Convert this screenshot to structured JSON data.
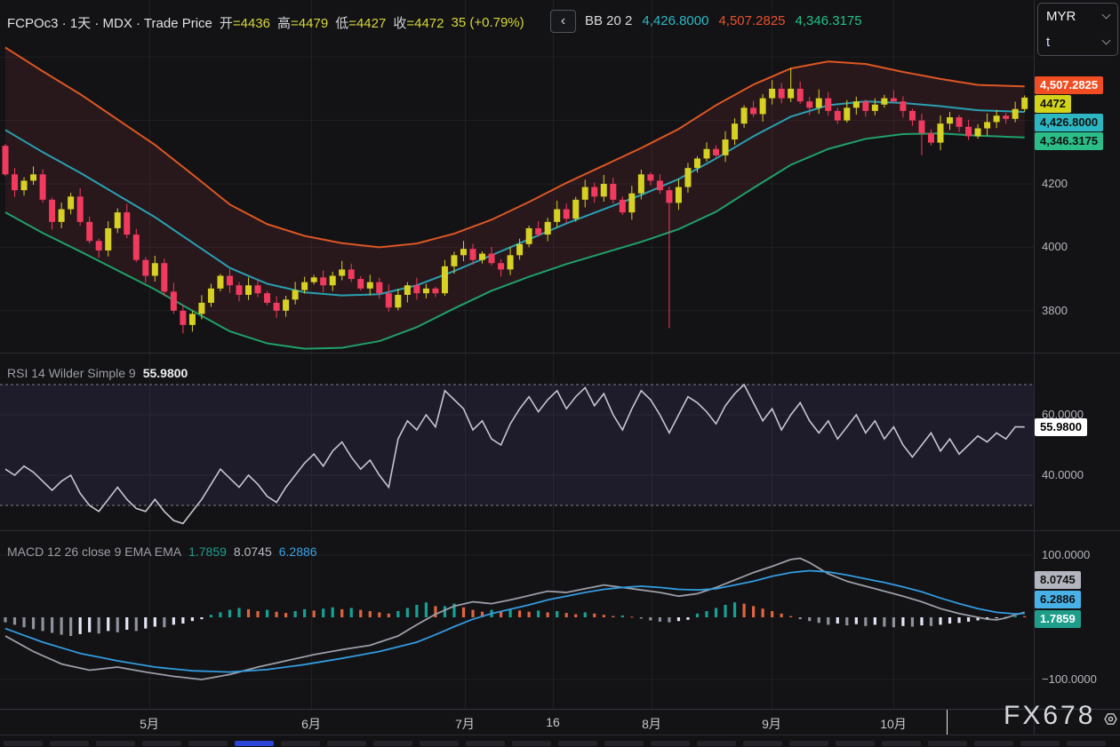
{
  "header": {
    "title": "FCPOc3 · 1天 · MDX · Trade Price",
    "ohlc": {
      "open_label": "开",
      "open": "=4436",
      "high_label": "高",
      "high": "=4479",
      "low_label": "低",
      "low": "=4427",
      "close_label": "收",
      "close": "=4472",
      "change": "35 (+0.79%)"
    },
    "back_button": "‹",
    "bb_legend": {
      "title": "BB 20 2",
      "basis": "4,426.8000",
      "upper": "4,507.2825",
      "lower": "4,346.3175"
    }
  },
  "top_right": {
    "currency": "MYR",
    "unit": "t"
  },
  "price_axis": {
    "ticks": [
      "4200",
      "4000",
      "3800"
    ],
    "chips": {
      "upper": {
        "text": "4,507.2825",
        "bg": "#f04e22",
        "fg": "#ffffff"
      },
      "last": {
        "text": "4472",
        "bg": "#d3d419",
        "fg": "#111111"
      },
      "basis": {
        "text": "4,426.8000",
        "bg": "#2cb6c2",
        "fg": "#111111"
      },
      "lower": {
        "text": "4,346.3175",
        "bg": "#2abd87",
        "fg": "#111111"
      }
    }
  },
  "rsi_pane": {
    "title": "RSI 14 Wilder Simple 9",
    "value": "55.9800",
    "ticks": [
      "60.0000",
      "40.0000"
    ],
    "chip": {
      "text": "55.9800",
      "bg": "#ffffff",
      "fg": "#000000"
    }
  },
  "macd_pane": {
    "title": "MACD 12 26 close 9 EMA EMA",
    "hist_value": "1.7859",
    "macd_value": "8.0745",
    "signal_value": "6.2886",
    "ticks": [
      "100.0000",
      "−100.0000"
    ],
    "chips": {
      "macd": {
        "text": "8.0745",
        "bg": "#b2b5be",
        "fg": "#111111"
      },
      "signal": {
        "text": "6.2886",
        "bg": "#47b1e8",
        "fg": "#111111"
      },
      "hist": {
        "text": "1.7859",
        "bg": "#1e9d8b",
        "fg": "#ffffff"
      }
    }
  },
  "watermark": {
    "text": "FX678"
  },
  "minimap": {
    "segments": 24,
    "active_index": 5
  },
  "colors": {
    "candle_up": "#d6d122",
    "candle_down": "#f23a5f",
    "bb_upper": "#dd5623",
    "bb_basis": "#29a0b2",
    "bb_lower": "#1fa06a",
    "bb_fill": "rgba(230,70,96,0.10)",
    "rsi_line": "#c5c6d0",
    "rsi_band_fill": "rgba(140,112,250,0.09)",
    "macd_line": "#9b9ea8",
    "signal_line": "#339be0",
    "hist_pos_rise": "#16a195",
    "hist_pos_fall": "#e0643f",
    "hist_neg_fall": "#8d919b",
    "hist_neg_rise": "#e3e4f5",
    "grid": "rgba(255,255,255,0.055)",
    "dashed_level": "#8f929c"
  },
  "chart_data": {
    "type": "candlestick",
    "symbol": "FCPOc3",
    "interval": "1天",
    "exchange": "MDX",
    "series": "Trade Price",
    "currency": "MYR",
    "unit": "t",
    "last_ohlc": {
      "open": 4436,
      "high": 4479,
      "low": 4427,
      "close": 4472,
      "change": 35,
      "change_pct": 0.79
    },
    "price_ticks": [
      4200,
      4000,
      3800
    ],
    "price_gridlines": [
      4600,
      4400,
      4200,
      4000,
      3800
    ],
    "x_labels": [
      [
        "5月",
        168
      ],
      [
        "6月",
        350
      ],
      [
        "7月",
        523
      ],
      [
        "16",
        622
      ],
      [
        "8月",
        733
      ],
      [
        "9月",
        868
      ],
      [
        "10月",
        1005
      ]
    ],
    "candles": {
      "first_open": 4320,
      "closes": [
        4230,
        4180,
        4210,
        4230,
        4150,
        4080,
        4120,
        4160,
        4080,
        4020,
        3990,
        4060,
        4110,
        4040,
        3960,
        3910,
        3950,
        3860,
        3800,
        3755,
        3790,
        3825,
        3870,
        3910,
        3880,
        3850,
        3880,
        3855,
        3825,
        3800,
        3835,
        3865,
        3890,
        3905,
        3880,
        3910,
        3930,
        3900,
        3870,
        3890,
        3855,
        3810,
        3850,
        3880,
        3855,
        3870,
        3855,
        3940,
        3975,
        3995,
        3960,
        3980,
        3950,
        3930,
        3975,
        4010,
        4060,
        4040,
        4080,
        4120,
        4090,
        4150,
        4190,
        4160,
        4200,
        4150,
        4110,
        4170,
        4230,
        4210,
        4180,
        4140,
        4190,
        4250,
        4280,
        4310,
        4290,
        4340,
        4390,
        4440,
        4420,
        4470,
        4500,
        4470,
        4500,
        4460,
        4440,
        4470,
        4430,
        4400,
        4440,
        4460,
        4430,
        4450,
        4470,
        4460,
        4430,
        4400,
        4360,
        4330,
        4390,
        4410,
        4380,
        4350,
        4375,
        4395,
        4415,
        4405,
        4436,
        4472
      ],
      "wick_spikes": {
        "19": {
          "low": 3728
        },
        "71": {
          "low": 3745
        },
        "84": {
          "high": 4565
        },
        "98": {
          "low": 4290
        }
      }
    },
    "bb": {
      "period": 20,
      "stdev": 2,
      "upper_current": 4507.2825,
      "basis_current": 4426.8,
      "lower_current": 4346.3175,
      "basis_points": [
        [
          0,
          4370
        ],
        [
          4,
          4300
        ],
        [
          8,
          4235
        ],
        [
          12,
          4165
        ],
        [
          16,
          4095
        ],
        [
          20,
          4015
        ],
        [
          24,
          3935
        ],
        [
          28,
          3885
        ],
        [
          32,
          3858
        ],
        [
          36,
          3848
        ],
        [
          40,
          3852
        ],
        [
          44,
          3880
        ],
        [
          48,
          3925
        ],
        [
          52,
          3975
        ],
        [
          56,
          4025
        ],
        [
          60,
          4075
        ],
        [
          64,
          4120
        ],
        [
          68,
          4165
        ],
        [
          72,
          4215
        ],
        [
          76,
          4280
        ],
        [
          80,
          4350
        ],
        [
          84,
          4412
        ],
        [
          88,
          4448
        ],
        [
          92,
          4460
        ],
        [
          96,
          4455
        ],
        [
          100,
          4445
        ],
        [
          104,
          4432
        ],
        [
          109,
          4426.8
        ]
      ],
      "halfwidth_points": [
        [
          0,
          260
        ],
        [
          4,
          255
        ],
        [
          8,
          248
        ],
        [
          12,
          238
        ],
        [
          16,
          228
        ],
        [
          20,
          215
        ],
        [
          24,
          200
        ],
        [
          28,
          188
        ],
        [
          32,
          178
        ],
        [
          36,
          165
        ],
        [
          40,
          148
        ],
        [
          44,
          132
        ],
        [
          48,
          118
        ],
        [
          52,
          112
        ],
        [
          56,
          118
        ],
        [
          60,
          128
        ],
        [
          64,
          138
        ],
        [
          68,
          148
        ],
        [
          72,
          158
        ],
        [
          76,
          168
        ],
        [
          80,
          163
        ],
        [
          84,
          152
        ],
        [
          88,
          138
        ],
        [
          92,
          118
        ],
        [
          96,
          98
        ],
        [
          100,
          86
        ],
        [
          104,
          80
        ],
        [
          109,
          80.5
        ]
      ]
    },
    "rsi": {
      "period": 14,
      "smoothing": "Wilder Simple 9",
      "current": 55.98,
      "overbought": 70,
      "oversold": 30,
      "gridlines": [
        60,
        40
      ],
      "values": [
        42,
        40,
        43,
        41,
        38,
        35,
        38,
        40,
        34,
        30,
        28,
        32,
        36,
        32,
        29,
        28,
        32,
        28,
        25,
        24,
        28,
        32,
        37,
        42,
        39,
        36,
        40,
        37,
        33,
        31,
        36,
        40,
        44,
        47,
        43,
        48,
        51,
        46,
        42,
        45,
        40,
        36,
        52,
        58,
        55,
        60,
        56,
        68,
        65,
        62,
        55,
        58,
        52,
        50,
        57,
        62,
        66,
        61,
        65,
        68,
        62,
        66,
        69,
        63,
        67,
        60,
        55,
        62,
        68,
        65,
        60,
        54,
        60,
        66,
        64,
        61,
        57,
        63,
        67,
        70,
        64,
        58,
        62,
        55,
        60,
        64,
        58,
        54,
        58,
        52,
        56,
        60,
        54,
        58,
        52,
        56,
        50,
        46,
        50,
        54,
        48,
        52,
        47,
        50,
        53,
        51,
        54,
        52,
        56,
        55.98
      ]
    },
    "macd": {
      "fast": 12,
      "slow": 26,
      "source": "close",
      "signal_period": 9,
      "macd_current": 8.0745,
      "signal_current": 6.2886,
      "hist_current": 1.7859,
      "gridlines": [
        100,
        -100
      ],
      "macd_points": [
        [
          0,
          -30
        ],
        [
          3,
          -55
        ],
        [
          6,
          -75
        ],
        [
          9,
          -85
        ],
        [
          12,
          -80
        ],
        [
          15,
          -88
        ],
        [
          18,
          -95
        ],
        [
          21,
          -100
        ],
        [
          24,
          -92
        ],
        [
          27,
          -80
        ],
        [
          30,
          -70
        ],
        [
          33,
          -60
        ],
        [
          36,
          -52
        ],
        [
          39,
          -45
        ],
        [
          42,
          -30
        ],
        [
          44,
          -12
        ],
        [
          46,
          5
        ],
        [
          48,
          18
        ],
        [
          50,
          25
        ],
        [
          52,
          22
        ],
        [
          54,
          28
        ],
        [
          56,
          35
        ],
        [
          58,
          42
        ],
        [
          60,
          40
        ],
        [
          62,
          46
        ],
        [
          64,
          52
        ],
        [
          66,
          48
        ],
        [
          68,
          44
        ],
        [
          70,
          40
        ],
        [
          72,
          34
        ],
        [
          74,
          38
        ],
        [
          76,
          48
        ],
        [
          78,
          60
        ],
        [
          80,
          72
        ],
        [
          82,
          82
        ],
        [
          84,
          93
        ],
        [
          85,
          95
        ],
        [
          86,
          88
        ],
        [
          88,
          70
        ],
        [
          90,
          58
        ],
        [
          92,
          50
        ],
        [
          94,
          42
        ],
        [
          96,
          34
        ],
        [
          98,
          25
        ],
        [
          100,
          14
        ],
        [
          102,
          6
        ],
        [
          104,
          0
        ],
        [
          105,
          -3
        ],
        [
          106,
          -4
        ],
        [
          107,
          -1
        ],
        [
          108,
          4
        ],
        [
          109,
          8.07
        ]
      ],
      "signal_points": [
        [
          0,
          -18
        ],
        [
          4,
          -40
        ],
        [
          8,
          -58
        ],
        [
          12,
          -70
        ],
        [
          16,
          -80
        ],
        [
          20,
          -86
        ],
        [
          24,
          -88
        ],
        [
          28,
          -84
        ],
        [
          32,
          -76
        ],
        [
          36,
          -66
        ],
        [
          40,
          -55
        ],
        [
          44,
          -40
        ],
        [
          46,
          -28
        ],
        [
          48,
          -15
        ],
        [
          50,
          -3
        ],
        [
          52,
          6
        ],
        [
          54,
          13
        ],
        [
          56,
          20
        ],
        [
          58,
          28
        ],
        [
          60,
          34
        ],
        [
          62,
          40
        ],
        [
          64,
          45
        ],
        [
          66,
          48
        ],
        [
          68,
          50
        ],
        [
          70,
          48
        ],
        [
          72,
          45
        ],
        [
          74,
          44
        ],
        [
          76,
          46
        ],
        [
          78,
          52
        ],
        [
          80,
          58
        ],
        [
          82,
          66
        ],
        [
          84,
          72
        ],
        [
          86,
          75
        ],
        [
          88,
          73
        ],
        [
          90,
          68
        ],
        [
          92,
          62
        ],
        [
          94,
          56
        ],
        [
          96,
          49
        ],
        [
          98,
          41
        ],
        [
          100,
          31
        ],
        [
          102,
          22
        ],
        [
          104,
          14
        ],
        [
          106,
          8
        ],
        [
          108,
          5.5
        ],
        [
          109,
          6.29
        ]
      ],
      "hist": [
        -8,
        -12,
        -16,
        -19,
        -22,
        -25,
        -28,
        -30,
        -27,
        -24,
        -26,
        -22,
        -24,
        -20,
        -22,
        -18,
        -15,
        -16,
        -12,
        -10,
        -6,
        -3,
        4,
        8,
        12,
        15,
        13,
        10,
        12,
        9,
        7,
        10,
        13,
        11,
        14,
        16,
        13,
        15,
        12,
        10,
        8,
        6,
        10,
        15,
        20,
        24,
        18,
        18,
        22,
        16,
        12,
        9,
        12,
        10,
        13,
        11,
        9,
        11,
        8,
        10,
        7,
        5,
        8,
        6,
        4,
        2,
        3,
        1,
        -2,
        -5,
        -7,
        -8,
        -6,
        -4,
        6,
        10,
        15,
        20,
        24,
        22,
        18,
        14,
        10,
        6,
        2,
        -3,
        -6,
        -9,
        -12,
        -10,
        -13,
        -11,
        -14,
        -12,
        -15,
        -16,
        -14,
        -15,
        -13,
        -14,
        -12,
        -10,
        -9,
        -7,
        -5,
        -3,
        -1,
        1,
        2,
        1.79
      ]
    }
  }
}
